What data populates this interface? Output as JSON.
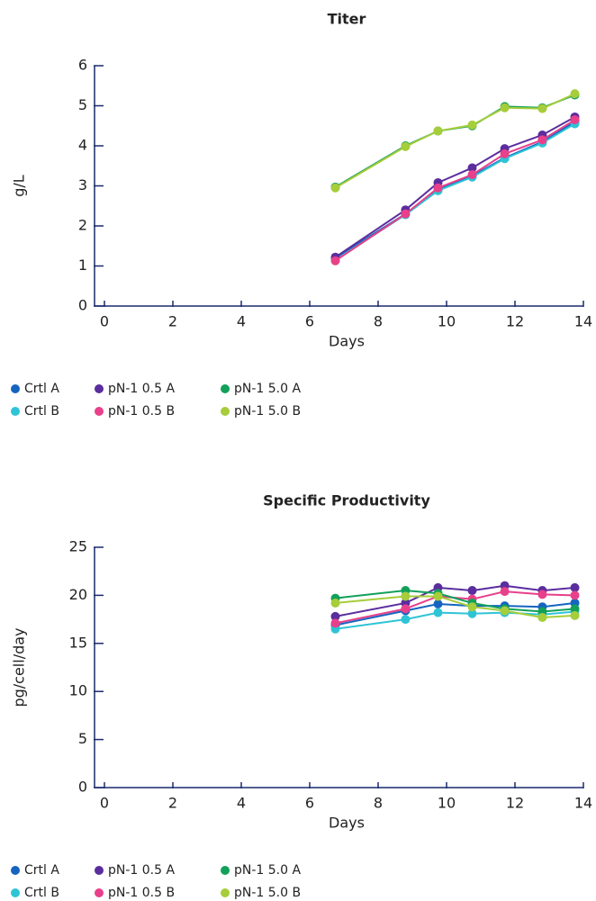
{
  "chart_data": [
    {
      "type": "line",
      "title": "Titer",
      "xlabel": "Days",
      "ylabel": "g/L",
      "xlim": [
        0,
        14
      ],
      "xticks": [
        0,
        2,
        4,
        6,
        8,
        10,
        12,
        14
      ],
      "ylim": [
        0,
        6
      ],
      "yticks": [
        0,
        1,
        2,
        3,
        4,
        5,
        6
      ],
      "x": [
        6.75,
        8.8,
        9.75,
        10.75,
        11.7,
        12.8,
        13.75
      ],
      "series": [
        {
          "name": "Crtl A",
          "color": "#1565c0",
          "values": [
            1.2,
            2.3,
            2.9,
            3.25,
            3.7,
            4.1,
            4.6
          ]
        },
        {
          "name": "Crtl B",
          "color": "#2ec4d6",
          "values": [
            1.15,
            2.28,
            2.88,
            3.22,
            3.68,
            4.07,
            4.55
          ]
        },
        {
          "name": "pN-1 0.5 A",
          "color": "#5b2d9e",
          "values": [
            1.22,
            2.4,
            3.08,
            3.45,
            3.93,
            4.27,
            4.72
          ]
        },
        {
          "name": "pN-1 0.5 B",
          "color": "#e8408a",
          "values": [
            1.13,
            2.3,
            2.95,
            3.28,
            3.8,
            4.15,
            4.65
          ]
        },
        {
          "name": "pN-1 5.0 A",
          "color": "#13a05a",
          "values": [
            2.97,
            4.0,
            4.37,
            4.5,
            4.98,
            4.95,
            5.27
          ]
        },
        {
          "name": "pN-1 5.0 B",
          "color": "#a6cd3a",
          "values": [
            2.95,
            3.98,
            4.37,
            4.52,
            4.95,
            4.93,
            5.3
          ]
        }
      ]
    },
    {
      "type": "line",
      "title": "Specific Productivity",
      "xlabel": "Days",
      "ylabel": "pg/cell/day",
      "xlim": [
        0,
        14
      ],
      "xticks": [
        0,
        2,
        4,
        6,
        8,
        10,
        12,
        14
      ],
      "ylim": [
        0,
        25
      ],
      "yticks": [
        0,
        5,
        10,
        15,
        20,
        25
      ],
      "x": [
        6.75,
        8.8,
        9.75,
        10.75,
        11.7,
        12.8,
        13.75
      ],
      "series": [
        {
          "name": "Crtl A",
          "color": "#1565c0",
          "values": [
            16.9,
            18.4,
            19.1,
            18.9,
            18.9,
            18.8,
            19.2
          ]
        },
        {
          "name": "Crtl B",
          "color": "#2ec4d6",
          "values": [
            16.5,
            17.5,
            18.2,
            18.1,
            18.2,
            18.0,
            18.3
          ]
        },
        {
          "name": "pN-1 0.5 A",
          "color": "#5b2d9e",
          "values": [
            17.8,
            19.2,
            20.8,
            20.5,
            21.0,
            20.5,
            20.8
          ]
        },
        {
          "name": "pN-1 0.5 B",
          "color": "#e8408a",
          "values": [
            17.1,
            18.6,
            19.9,
            19.6,
            20.4,
            20.1,
            20.0
          ]
        },
        {
          "name": "pN-1 5.0 A",
          "color": "#13a05a",
          "values": [
            19.7,
            20.5,
            20.2,
            19.2,
            18.6,
            18.3,
            18.6
          ]
        },
        {
          "name": "pN-1 5.0 B",
          "color": "#a6cd3a",
          "values": [
            19.2,
            19.9,
            19.9,
            18.8,
            18.4,
            17.7,
            17.9
          ]
        }
      ]
    }
  ]
}
